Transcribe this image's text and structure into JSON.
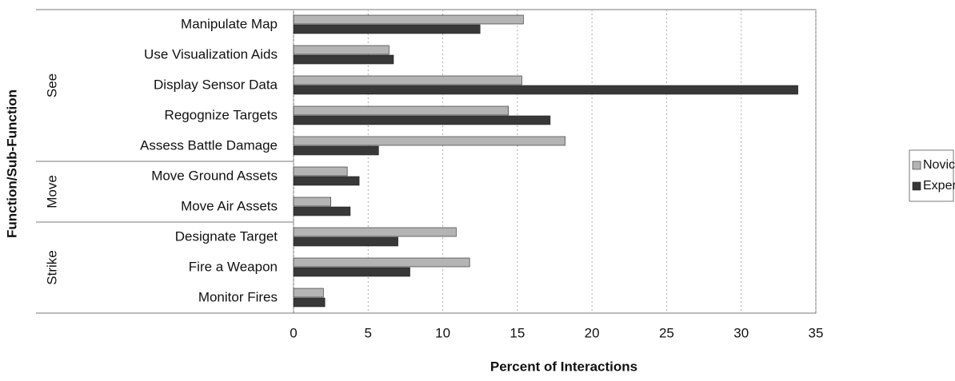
{
  "chart_data": {
    "type": "barh",
    "xlabel": "Percent of Interactions",
    "ylabel": "Function/Sub-Function",
    "group_labels": [
      "See",
      "Move",
      "Strike"
    ],
    "categories": [
      "Manipulate Map",
      "Use Visualization Aids",
      "Display Sensor Data",
      "Regognize Targets",
      "Assess Battle Damage",
      "Move Ground Assets",
      "Move Air Assets",
      "Designate Target",
      "Fire a Weapon",
      "Monitor Fires"
    ],
    "series": [
      {
        "name": "Novice",
        "color": "#b4b4b4",
        "values": [
          15.4,
          6.4,
          15.3,
          14.4,
          18.2,
          3.6,
          2.5,
          10.9,
          11.8,
          2.0
        ]
      },
      {
        "name": "Expert",
        "color": "#383838",
        "values": [
          12.5,
          6.7,
          33.8,
          17.2,
          5.7,
          4.4,
          3.8,
          7.0,
          7.8,
          2.1
        ]
      }
    ],
    "xlim": [
      0,
      35
    ],
    "xticks": [
      0,
      5,
      10,
      15,
      20,
      25,
      30,
      35
    ],
    "grid": true,
    "legend": "right"
  }
}
